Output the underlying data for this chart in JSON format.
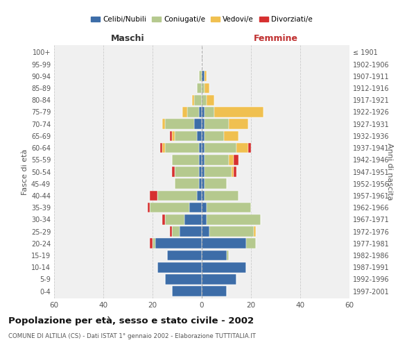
{
  "age_groups": [
    "0-4",
    "5-9",
    "10-14",
    "15-19",
    "20-24",
    "25-29",
    "30-34",
    "35-39",
    "40-44",
    "45-49",
    "50-54",
    "55-59",
    "60-64",
    "65-69",
    "70-74",
    "75-79",
    "80-84",
    "85-89",
    "90-94",
    "95-99",
    "100+"
  ],
  "birth_years": [
    "1997-2001",
    "1992-1996",
    "1987-1991",
    "1982-1986",
    "1977-1981",
    "1972-1976",
    "1967-1971",
    "1962-1966",
    "1957-1961",
    "1952-1956",
    "1947-1951",
    "1942-1946",
    "1937-1941",
    "1932-1936",
    "1927-1931",
    "1922-1926",
    "1917-1921",
    "1912-1916",
    "1907-1911",
    "1902-1906",
    "≤ 1901"
  ],
  "male": {
    "celibi": [
      12,
      15,
      18,
      14,
      19,
      9,
      7,
      5,
      2,
      1,
      1,
      1,
      1,
      2,
      3,
      1,
      0,
      0,
      0,
      0,
      0
    ],
    "coniugati": [
      0,
      0,
      0,
      0,
      1,
      3,
      8,
      16,
      16,
      10,
      10,
      11,
      14,
      9,
      12,
      5,
      3,
      2,
      1,
      0,
      0
    ],
    "vedovi": [
      0,
      0,
      0,
      0,
      0,
      0,
      0,
      0,
      0,
      0,
      0,
      0,
      1,
      1,
      1,
      2,
      1,
      0,
      0,
      0,
      0
    ],
    "divorziati": [
      0,
      0,
      0,
      0,
      1,
      1,
      1,
      1,
      3,
      0,
      1,
      0,
      1,
      1,
      0,
      0,
      0,
      0,
      0,
      0,
      0
    ]
  },
  "female": {
    "nubili": [
      10,
      14,
      18,
      10,
      18,
      3,
      2,
      2,
      1,
      1,
      1,
      1,
      1,
      1,
      1,
      1,
      0,
      0,
      1,
      0,
      0
    ],
    "coniugate": [
      0,
      0,
      0,
      1,
      4,
      18,
      22,
      18,
      14,
      9,
      11,
      10,
      13,
      8,
      10,
      4,
      2,
      1,
      0,
      0,
      0
    ],
    "vedove": [
      0,
      0,
      0,
      0,
      0,
      1,
      0,
      0,
      0,
      0,
      1,
      2,
      5,
      6,
      8,
      20,
      3,
      2,
      1,
      0,
      0
    ],
    "divorziate": [
      0,
      0,
      0,
      0,
      0,
      0,
      0,
      0,
      0,
      0,
      1,
      2,
      1,
      0,
      0,
      0,
      0,
      0,
      0,
      0,
      0
    ]
  },
  "colors": {
    "celibi_nubili": "#3d6da8",
    "coniugati": "#b5c98e",
    "vedovi": "#f0c050",
    "divorziati": "#d63030"
  },
  "title": "Popolazione per età, sesso e stato civile - 2002",
  "subtitle": "COMUNE DI ALTILIA (CS) - Dati ISTAT 1° gennaio 2002 - Elaborazione TUTTITALIA.IT",
  "xlim": 60,
  "xlabel_left": "Maschi",
  "xlabel_right": "Femmine",
  "ylabel_left": "Fasce di età",
  "ylabel_right": "Anni di nascita",
  "legend_labels": [
    "Celibi/Nubili",
    "Coniugati/e",
    "Vedovi/e",
    "Divorziati/e"
  ],
  "bg_color": "#f0f0f0",
  "grid_color": "#cccccc"
}
